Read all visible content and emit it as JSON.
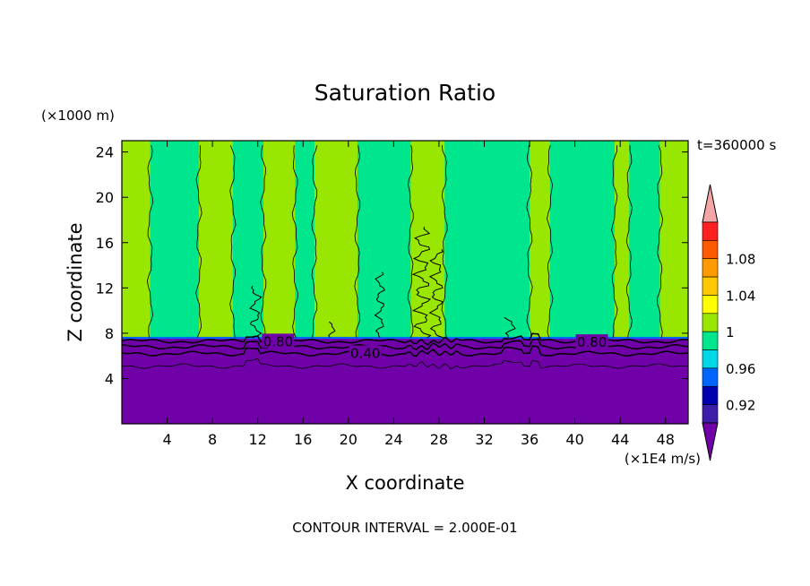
{
  "chart_data": {
    "type": "heatmap",
    "title": "Saturation Ratio",
    "xlabel": "X coordinate",
    "ylabel": "Z coordinate",
    "x_unit": "(×1E4 m/s)",
    "y_unit": "(×1000 m)",
    "time_label": "t=360000 s",
    "footer": "CONTOUR INTERVAL = 2.000E-01",
    "xlim": [
      0,
      50
    ],
    "ylim": [
      0,
      25
    ],
    "x_ticks": [
      4,
      8,
      12,
      16,
      20,
      24,
      28,
      32,
      36,
      40,
      44,
      48
    ],
    "y_ticks": [
      4,
      8,
      12,
      16,
      20,
      24
    ],
    "stratosphere_bands": [
      {
        "x0": 0,
        "x1": 2.5,
        "level": "1"
      },
      {
        "x0": 2.5,
        "x1": 6.8,
        "level": "0.98"
      },
      {
        "x0": 6.8,
        "x1": 9.8,
        "level": "1"
      },
      {
        "x0": 9.8,
        "x1": 12.5,
        "level": "0.98"
      },
      {
        "x0": 12.5,
        "x1": 15.3,
        "level": "1"
      },
      {
        "x0": 15.3,
        "x1": 17.0,
        "level": "0.98"
      },
      {
        "x0": 17.0,
        "x1": 20.8,
        "level": "1"
      },
      {
        "x0": 20.8,
        "x1": 25.5,
        "level": "0.98"
      },
      {
        "x0": 25.5,
        "x1": 28.5,
        "level": "1"
      },
      {
        "x0": 28.5,
        "x1": 36.0,
        "level": "0.98"
      },
      {
        "x0": 36.0,
        "x1": 37.8,
        "level": "1"
      },
      {
        "x0": 37.8,
        "x1": 43.5,
        "level": "0.98"
      },
      {
        "x0": 43.5,
        "x1": 44.8,
        "level": "1"
      },
      {
        "x0": 44.8,
        "x1": 47.5,
        "level": "0.98"
      },
      {
        "x0": 47.5,
        "x1": 50,
        "level": "1"
      }
    ],
    "boundary_height": 7.6,
    "contour_lines": [
      {
        "label": "0.80",
        "base": 7.3,
        "label_x": [
          13.8,
          41.5
        ]
      },
      {
        "label": "",
        "base": 6.8,
        "label_x": []
      },
      {
        "label": "0.40",
        "base": 6.2,
        "label_x": [
          21.5
        ]
      },
      {
        "label": "",
        "base": 5.1,
        "label_x": []
      }
    ],
    "colorbar": {
      "levels": [
        {
          "value": "over",
          "color": "#f4a6a6"
        },
        {
          "value": "1.1",
          "color": "#ff2020"
        },
        {
          "value": "1.08",
          "color": "#ff5a00"
        },
        {
          "value": "1.06",
          "color": "#ff9a00"
        },
        {
          "value": "1.04",
          "color": "#ffc800"
        },
        {
          "value": "1.02",
          "color": "#ffff00"
        },
        {
          "value": "1",
          "color": "#99e600"
        },
        {
          "value": "0.98",
          "color": "#00e68c"
        },
        {
          "value": "0.96",
          "color": "#00d8e8"
        },
        {
          "value": "0.94",
          "color": "#0066ff"
        },
        {
          "value": "0.92",
          "color": "#0000b0"
        },
        {
          "value": "0.9",
          "color": "#3c1ea8"
        },
        {
          "value": "under",
          "color": "#7000a8"
        }
      ],
      "labels": [
        "1.08",
        "1.04",
        "1",
        "0.96",
        "0.92"
      ]
    }
  }
}
